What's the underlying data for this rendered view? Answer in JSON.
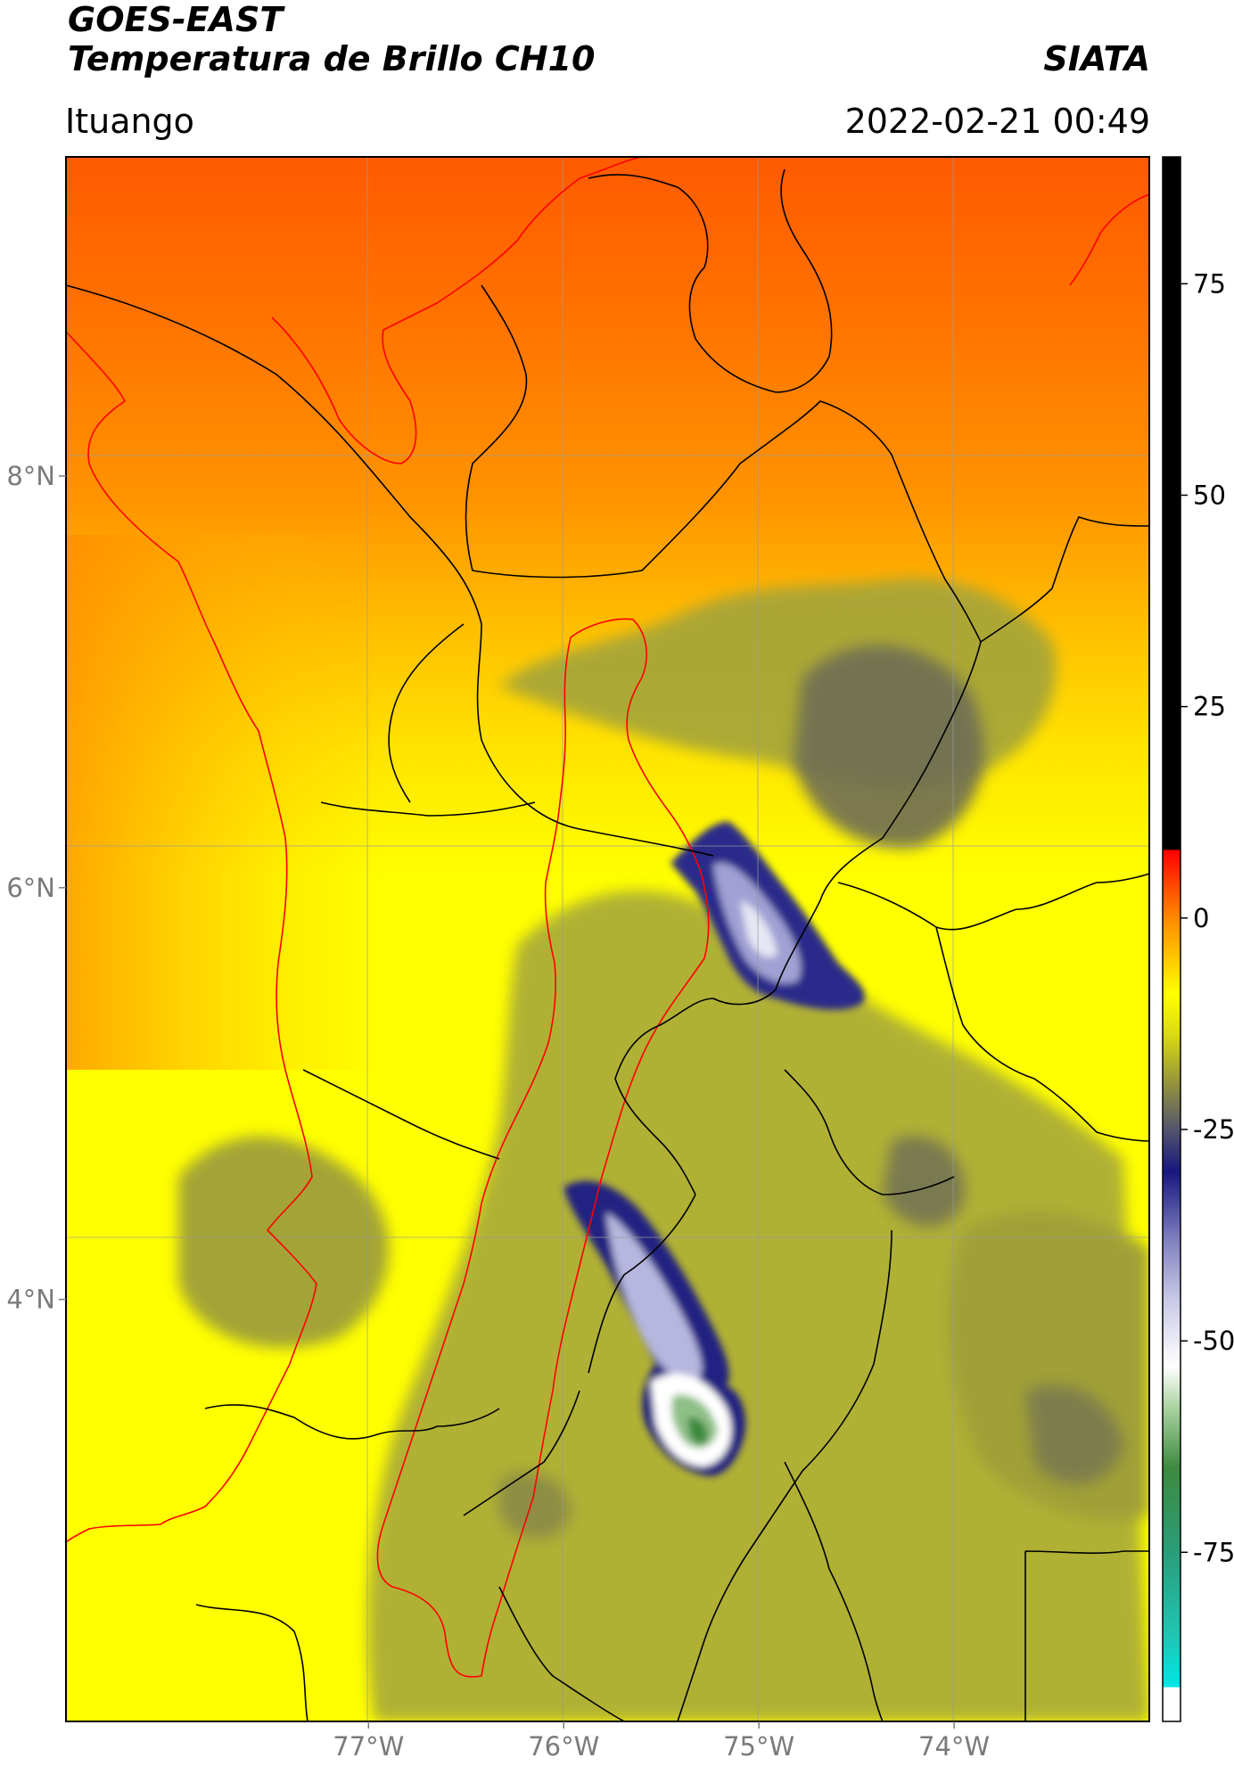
{
  "header": {
    "satellite": "GOES-EAST",
    "product": "Temperatura de Brillo CH10",
    "org": "SIATA",
    "region": "Ituango",
    "datetime": "2022-02-21 00:49"
  },
  "axes": {
    "lat_ticks": [
      {
        "value": 8,
        "label": "8°N"
      },
      {
        "value": 6,
        "label": "6°N"
      },
      {
        "value": 4,
        "label": "4°N"
      }
    ],
    "lon_ticks": [
      {
        "value": -77,
        "label": "77°W"
      },
      {
        "value": -76,
        "label": "76°W"
      },
      {
        "value": -75,
        "label": "75°W"
      },
      {
        "value": -74,
        "label": "74°W"
      }
    ],
    "lon_range": [
      -78.55,
      -73.0
    ],
    "lat_range": [
      1.95,
      9.55
    ]
  },
  "colorbar": {
    "range": [
      -95,
      90
    ],
    "ticks": [
      {
        "value": 75,
        "label": "75"
      },
      {
        "value": 50,
        "label": "50"
      },
      {
        "value": 25,
        "label": "25"
      },
      {
        "value": 0,
        "label": "0"
      },
      {
        "value": -25,
        "label": "-25"
      },
      {
        "value": -50,
        "label": "-50"
      },
      {
        "value": -75,
        "label": "-75"
      }
    ],
    "stops": [
      {
        "value": -95,
        "color": "#ffffff"
      },
      {
        "value": -91,
        "color": "#ffffff"
      },
      {
        "value": -90.9,
        "color": "#00e5e5"
      },
      {
        "value": -85,
        "color": "#1fc6b4"
      },
      {
        "value": -75,
        "color": "#2a9d7a"
      },
      {
        "value": -65,
        "color": "#3e8a3e"
      },
      {
        "value": -58,
        "color": "#a9d2a0"
      },
      {
        "value": -53,
        "color": "#ffffff"
      },
      {
        "value": -45,
        "color": "#c8c8e6"
      },
      {
        "value": -38,
        "color": "#7f7fbf"
      },
      {
        "value": -30,
        "color": "#17177f"
      },
      {
        "value": -25,
        "color": "#54546e"
      },
      {
        "value": -20,
        "color": "#8e8e40"
      },
      {
        "value": -14,
        "color": "#d8d814"
      },
      {
        "value": -9,
        "color": "#ffff00"
      },
      {
        "value": 0,
        "color": "#ff8a00"
      },
      {
        "value": 8,
        "color": "#ff0000"
      },
      {
        "value": 8.1,
        "color": "#000000"
      },
      {
        "value": 90,
        "color": "#000000"
      }
    ]
  }
}
